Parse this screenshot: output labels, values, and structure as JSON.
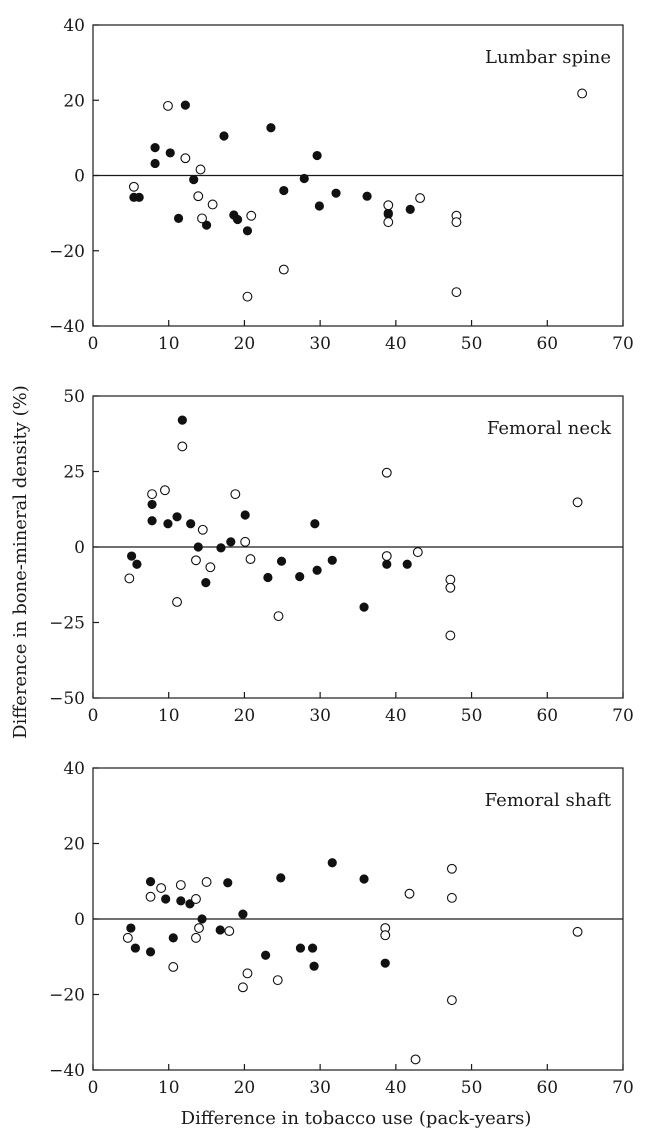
{
  "chart_data": [
    {
      "type": "scatter",
      "title": "Lumbar spine",
      "xlim": [
        0,
        70
      ],
      "ylim": [
        -40,
        40
      ],
      "xticks": [
        "0",
        "10",
        "20",
        "30",
        "40",
        "50",
        "60",
        "70"
      ],
      "yticks": [
        "40",
        "20",
        "0",
        "−20",
        "−40"
      ],
      "grid": false,
      "series": [
        {
          "marker": "filled",
          "points": [
            [
              5.4,
              -5.8
            ],
            [
              6.1,
              -5.8
            ],
            [
              8.2,
              7.4
            ],
            [
              8.2,
              3.2
            ],
            [
              10.2,
              6.0
            ],
            [
              11.3,
              -11.4
            ],
            [
              12.2,
              18.7
            ],
            [
              13.3,
              -1.1
            ],
            [
              15.0,
              -13.2
            ],
            [
              17.3,
              10.5
            ],
            [
              18.6,
              -10.5
            ],
            [
              19.1,
              -11.7
            ],
            [
              20.4,
              -14.7
            ],
            [
              23.5,
              12.7
            ],
            [
              25.2,
              -4.0
            ],
            [
              27.9,
              -0.8
            ],
            [
              29.6,
              5.3
            ],
            [
              29.9,
              -8.1
            ],
            [
              32.1,
              -4.7
            ],
            [
              36.2,
              -5.5
            ],
            [
              39.0,
              -10.3
            ],
            [
              39.0,
              -10.0
            ],
            [
              41.9,
              -9.0
            ]
          ]
        },
        {
          "marker": "open",
          "points": [
            [
              5.4,
              -3.0
            ],
            [
              9.9,
              18.5
            ],
            [
              12.2,
              4.6
            ],
            [
              13.9,
              -5.5
            ],
            [
              14.2,
              1.6
            ],
            [
              14.4,
              -11.4
            ],
            [
              15.8,
              -7.7
            ],
            [
              20.4,
              -32.2
            ],
            [
              20.9,
              -10.7
            ],
            [
              25.2,
              -25.0
            ],
            [
              39.0,
              -7.9
            ],
            [
              39.0,
              -12.4
            ],
            [
              43.2,
              -6.0
            ],
            [
              48.0,
              -10.7
            ],
            [
              48.0,
              -12.4
            ],
            [
              48.0,
              -31.0
            ],
            [
              64.6,
              21.8
            ]
          ]
        }
      ]
    },
    {
      "type": "scatter",
      "title": "Femoral neck",
      "xlim": [
        0,
        70
      ],
      "ylim": [
        -50,
        50
      ],
      "xticks": [
        "0",
        "10",
        "20",
        "30",
        "40",
        "50",
        "60",
        "70"
      ],
      "yticks": [
        "50",
        "25",
        "0",
        "−25",
        "−50"
      ],
      "grid": false,
      "series": [
        {
          "marker": "filled",
          "points": [
            [
              5.1,
              -3.0
            ],
            [
              5.8,
              -5.7
            ],
            [
              7.8,
              8.7
            ],
            [
              7.8,
              14.1
            ],
            [
              9.9,
              7.7
            ],
            [
              11.1,
              10.0
            ],
            [
              11.8,
              42.0
            ],
            [
              12.9,
              7.7
            ],
            [
              13.9,
              0.0
            ],
            [
              14.9,
              -11.8
            ],
            [
              16.9,
              -0.3
            ],
            [
              18.2,
              1.7
            ],
            [
              20.1,
              10.6
            ],
            [
              23.1,
              -10.1
            ],
            [
              24.9,
              -4.7
            ],
            [
              27.3,
              -9.8
            ],
            [
              29.3,
              7.7
            ],
            [
              29.6,
              -7.7
            ],
            [
              31.6,
              -4.4
            ],
            [
              35.8,
              -19.9
            ],
            [
              38.8,
              -5.7
            ],
            [
              41.5,
              -5.7
            ]
          ]
        },
        {
          "marker": "open",
          "points": [
            [
              4.8,
              -10.4
            ],
            [
              7.8,
              17.5
            ],
            [
              9.5,
              18.8
            ],
            [
              11.1,
              -18.2
            ],
            [
              11.8,
              33.3
            ],
            [
              13.6,
              -4.4
            ],
            [
              14.5,
              5.7
            ],
            [
              15.5,
              -6.7
            ],
            [
              18.8,
              17.5
            ],
            [
              20.1,
              1.7
            ],
            [
              20.8,
              -4.0
            ],
            [
              24.5,
              -22.9
            ],
            [
              38.8,
              24.6
            ],
            [
              38.8,
              -3.0
            ],
            [
              42.9,
              -1.7
            ],
            [
              47.2,
              -10.8
            ],
            [
              47.2,
              -13.5
            ],
            [
              47.2,
              -29.3
            ],
            [
              64.0,
              14.8
            ]
          ]
        }
      ]
    },
    {
      "type": "scatter",
      "title": "Femoral shaft",
      "xlim": [
        0,
        70
      ],
      "ylim": [
        -40,
        40
      ],
      "xticks": [
        "0",
        "10",
        "20",
        "30",
        "40",
        "50",
        "60",
        "70"
      ],
      "yticks": [
        "40",
        "20",
        "0",
        "−20",
        "−40"
      ],
      "grid": false,
      "series": [
        {
          "marker": "filled",
          "points": [
            [
              5.0,
              -2.4
            ],
            [
              5.6,
              -7.7
            ],
            [
              7.6,
              9.9
            ],
            [
              7.6,
              -8.7
            ],
            [
              9.6,
              5.3
            ],
            [
              10.6,
              -5.0
            ],
            [
              11.6,
              4.8
            ],
            [
              12.8,
              4.0
            ],
            [
              14.4,
              0.0
            ],
            [
              16.8,
              -2.9
            ],
            [
              17.8,
              9.6
            ],
            [
              19.8,
              1.3
            ],
            [
              22.8,
              -9.6
            ],
            [
              24.8,
              10.9
            ],
            [
              27.4,
              -7.7
            ],
            [
              29.0,
              -7.7
            ],
            [
              29.2,
              -12.5
            ],
            [
              31.6,
              14.9
            ],
            [
              35.8,
              10.6
            ],
            [
              38.6,
              -11.7
            ]
          ]
        },
        {
          "marker": "open",
          "points": [
            [
              4.6,
              -5.0
            ],
            [
              7.6,
              5.9
            ],
            [
              9.0,
              8.2
            ],
            [
              10.6,
              -12.7
            ],
            [
              11.6,
              9.0
            ],
            [
              13.6,
              5.3
            ],
            [
              13.6,
              -5.0
            ],
            [
              14.0,
              -2.4
            ],
            [
              15.0,
              9.8
            ],
            [
              18.0,
              -3.2
            ],
            [
              19.8,
              -18.1
            ],
            [
              20.4,
              -14.4
            ],
            [
              24.4,
              -16.2
            ],
            [
              38.6,
              -2.4
            ],
            [
              38.6,
              -4.3
            ],
            [
              41.8,
              6.7
            ],
            [
              42.6,
              -37.2
            ],
            [
              47.4,
              13.3
            ],
            [
              47.4,
              5.6
            ],
            [
              47.4,
              -21.5
            ],
            [
              64.0,
              -3.4
            ]
          ]
        }
      ]
    }
  ],
  "shared_labels": {
    "ylabel": "Difference in bone-mineral density (%)",
    "xlabel": "Difference in tobacco use (pack-years)"
  }
}
